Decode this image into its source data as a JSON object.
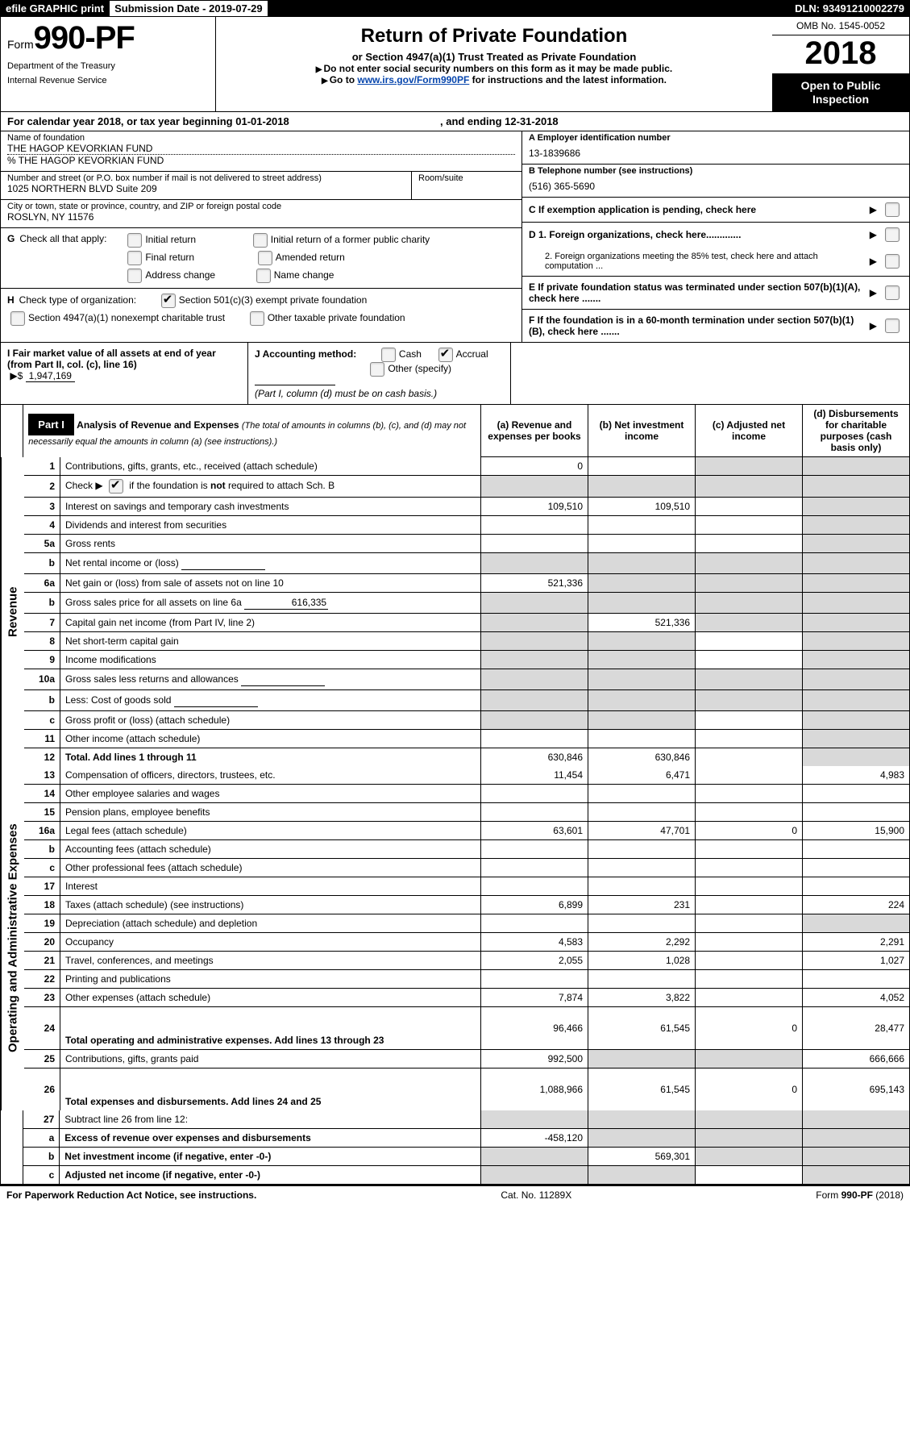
{
  "topbar": {
    "efile": "efile GRAPHIC print",
    "subdate_label": "Submission Date - ",
    "subdate": "2019-07-29",
    "dln_label": "DLN: ",
    "dln": "93491210002279"
  },
  "header": {
    "form_label": "Form",
    "form_num": "990-PF",
    "dept1": "Department of the Treasury",
    "dept2": "Internal Revenue Service",
    "title": "Return of Private Foundation",
    "subtitle": "or Section 4947(a)(1) Trust Treated as Private Foundation",
    "warn": "Do not enter social security numbers on this form as it may be made public.",
    "goto_pre": "Go to ",
    "goto_link": "www.irs.gov/Form990PF",
    "goto_post": " for instructions and the latest information.",
    "omb": "OMB No. 1545-0052",
    "year": "2018",
    "open": "Open to Public Inspection"
  },
  "cal_year": {
    "pre": "For calendar year 2018, or tax year beginning ",
    "start": "01-01-2018",
    "mid": ", and ending ",
    "end": "12-31-2018"
  },
  "entity": {
    "name_label": "Name of foundation",
    "name": "THE HAGOP KEVORKIAN FUND",
    "co": "% THE HAGOP KEVORKIAN FUND",
    "addr_label": "Number and street (or P.O. box number if mail is not delivered to street address)",
    "addr": "1025 NORTHERN BLVD Suite 209",
    "room_label": "Room/suite",
    "city_label": "City or town, state or province, country, and ZIP or foreign postal code",
    "city": "ROSLYN, NY  11576",
    "A_label": "A Employer identification number",
    "A_val": "13-1839686",
    "B_label": "B Telephone number (see instructions)",
    "B_val": "(516) 365-5690",
    "C_label": "C  If exemption application is pending, check here",
    "D1": "D 1. Foreign organizations, check here.............",
    "D2": "2. Foreign organizations meeting the 85% test, check here and attach computation ...",
    "E": "E   If private foundation status was terminated under section 507(b)(1)(A), check here .......",
    "F": "F   If the foundation is in a 60-month termination under section 507(b)(1)(B), check here .......",
    "G_label": "Check all that apply:",
    "G_items": [
      "Initial return",
      "Initial return of a former public charity",
      "Final return",
      "Amended return",
      "Address change",
      "Name change"
    ],
    "H_label": "Check type of organization:",
    "H1": "Section 501(c)(3) exempt private foundation",
    "H2": "Section 4947(a)(1) nonexempt charitable trust",
    "H3": "Other taxable private foundation",
    "I_label": "I Fair market value of all assets at end of year (from Part II, col. (c), line 16)",
    "I_val": "1,947,169",
    "J_label": "J Accounting method:",
    "J_cash": "Cash",
    "J_accrual": "Accrual",
    "J_other": "Other (specify)",
    "J_note": "(Part I, column (d) must be on cash basis.)"
  },
  "part1": {
    "label": "Part I",
    "title": "Analysis of Revenue and Expenses",
    "desc": "(The total of amounts in columns (b), (c), and (d) may not necessarily equal the amounts in column (a) (see instructions).)",
    "col_a": "(a)    Revenue and expenses per books",
    "col_b": "(b)    Net investment income",
    "col_c": "(c)    Adjusted net income",
    "col_d": "(d)    Disbursements for charitable purposes (cash basis only)",
    "side_rev": "Revenue",
    "side_exp": "Operating and Administrative Expenses"
  },
  "rows_rev": [
    {
      "n": "1",
      "desc": "Contributions, gifts, grants, etc., received (attach schedule)",
      "a": "0",
      "b": "",
      "c_s": true,
      "d_s": true
    },
    {
      "n": "2",
      "desc": "Check ▶ ☑ if the foundation is not required to attach Sch. B",
      "a_s": true,
      "b_s": true,
      "c_s": true,
      "d_s": true,
      "checkbox": true
    },
    {
      "n": "3",
      "desc": "Interest on savings and temporary cash investments",
      "a": "109,510",
      "b": "109,510",
      "c": "",
      "d_s": true
    },
    {
      "n": "4",
      "desc": "Dividends and interest from securities",
      "a": "",
      "b": "",
      "c": "",
      "d_s": true
    },
    {
      "n": "5a",
      "desc": "Gross rents",
      "a": "",
      "b": "",
      "c": "",
      "d_s": true
    },
    {
      "n": "b",
      "desc": "Net rental income or (loss)",
      "a_s": true,
      "b_s": true,
      "c_s": true,
      "d_s": true,
      "inline": true
    },
    {
      "n": "6a",
      "desc": "Net gain or (loss) from sale of assets not on line 10",
      "a": "521,336",
      "b_s": true,
      "c_s": true,
      "d_s": true
    },
    {
      "n": "b",
      "desc": "Gross sales price for all assets on line 6a",
      "a_s": true,
      "b_s": true,
      "c_s": true,
      "d_s": true,
      "inline": true,
      "inline_val": "616,335"
    },
    {
      "n": "7",
      "desc": "Capital gain net income (from Part IV, line 2)",
      "a_s": true,
      "b": "521,336",
      "c_s": true,
      "d_s": true
    },
    {
      "n": "8",
      "desc": "Net short-term capital gain",
      "a_s": true,
      "b_s": true,
      "c": "",
      "d_s": true
    },
    {
      "n": "9",
      "desc": "Income modifications",
      "a_s": true,
      "b_s": true,
      "c": "",
      "d_s": true
    },
    {
      "n": "10a",
      "desc": "Gross sales less returns and allowances",
      "a_s": true,
      "b_s": true,
      "c_s": true,
      "d_s": true,
      "inline": true
    },
    {
      "n": "b",
      "desc": "Less: Cost of goods sold",
      "a_s": true,
      "b_s": true,
      "c_s": true,
      "d_s": true,
      "inline": true
    },
    {
      "n": "c",
      "desc": "Gross profit or (loss) (attach schedule)",
      "a_s": true,
      "b_s": true,
      "c": "",
      "d_s": true
    },
    {
      "n": "11",
      "desc": "Other income (attach schedule)",
      "a": "",
      "b": "",
      "c": "",
      "d_s": true
    },
    {
      "n": "12",
      "desc": "Total. Add lines 1 through 11",
      "a": "630,846",
      "b": "630,846",
      "c": "",
      "d_s": true,
      "bold": true
    }
  ],
  "rows_exp": [
    {
      "n": "13",
      "desc": "Compensation of officers, directors, trustees, etc.",
      "a": "11,454",
      "b": "6,471",
      "c": "",
      "d": "4,983"
    },
    {
      "n": "14",
      "desc": "Other employee salaries and wages",
      "a": "",
      "b": "",
      "c": "",
      "d": ""
    },
    {
      "n": "15",
      "desc": "Pension plans, employee benefits",
      "a": "",
      "b": "",
      "c": "",
      "d": ""
    },
    {
      "n": "16a",
      "desc": "Legal fees (attach schedule)",
      "a": "63,601",
      "b": "47,701",
      "c": "0",
      "d": "15,900"
    },
    {
      "n": "b",
      "desc": "Accounting fees (attach schedule)",
      "a": "",
      "b": "",
      "c": "",
      "d": ""
    },
    {
      "n": "c",
      "desc": "Other professional fees (attach schedule)",
      "a": "",
      "b": "",
      "c": "",
      "d": ""
    },
    {
      "n": "17",
      "desc": "Interest",
      "a": "",
      "b": "",
      "c": "",
      "d": ""
    },
    {
      "n": "18",
      "desc": "Taxes (attach schedule) (see instructions)",
      "a": "6,899",
      "b": "231",
      "c": "",
      "d": "224"
    },
    {
      "n": "19",
      "desc": "Depreciation (attach schedule) and depletion",
      "a": "",
      "b": "",
      "c": "",
      "d_s": true
    },
    {
      "n": "20",
      "desc": "Occupancy",
      "a": "4,583",
      "b": "2,292",
      "c": "",
      "d": "2,291"
    },
    {
      "n": "21",
      "desc": "Travel, conferences, and meetings",
      "a": "2,055",
      "b": "1,028",
      "c": "",
      "d": "1,027"
    },
    {
      "n": "22",
      "desc": "Printing and publications",
      "a": "",
      "b": "",
      "c": "",
      "d": ""
    },
    {
      "n": "23",
      "desc": "Other expenses (attach schedule)",
      "a": "7,874",
      "b": "3,822",
      "c": "",
      "d": "4,052"
    },
    {
      "n": "24",
      "desc": "Total operating and administrative expenses. Add lines 13 through 23",
      "a": "96,466",
      "b": "61,545",
      "c": "0",
      "d": "28,477",
      "bold": true,
      "tall": true
    },
    {
      "n": "25",
      "desc": "Contributions, gifts, grants paid",
      "a": "992,500",
      "b_s": true,
      "c_s": true,
      "d": "666,666"
    },
    {
      "n": "26",
      "desc": "Total expenses and disbursements. Add lines 24 and 25",
      "a": "1,088,966",
      "b": "61,545",
      "c": "0",
      "d": "695,143",
      "bold": true,
      "tall": true
    }
  ],
  "rows_bot": [
    {
      "n": "27",
      "desc": "Subtract line 26 from line 12:",
      "a_s": true,
      "b_s": true,
      "c_s": true,
      "d_s": true
    },
    {
      "n": "a",
      "desc": "Excess of revenue over expenses and disbursements",
      "a": "-458,120",
      "b_s": true,
      "c_s": true,
      "d_s": true,
      "bold": true
    },
    {
      "n": "b",
      "desc": "Net investment income (if negative, enter -0-)",
      "a_s": true,
      "b": "569,301",
      "c_s": true,
      "d_s": true,
      "bold": true
    },
    {
      "n": "c",
      "desc": "Adjusted net income (if negative, enter -0-)",
      "a_s": true,
      "b_s": true,
      "c": "",
      "d_s": true,
      "bold": true
    }
  ],
  "footer": {
    "left": "For Paperwork Reduction Act Notice, see instructions.",
    "mid": "Cat. No. 11289X",
    "right": "Form 990-PF (2018)"
  }
}
